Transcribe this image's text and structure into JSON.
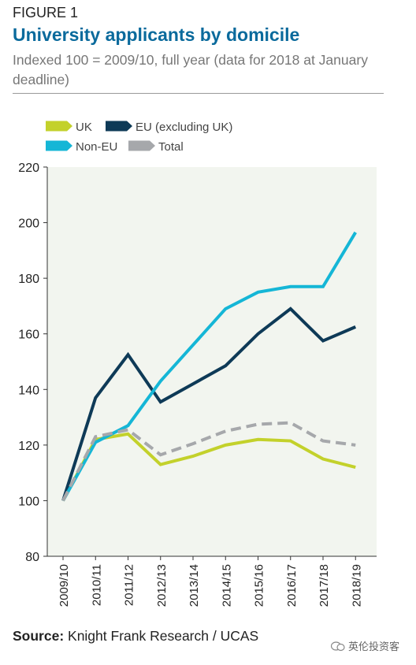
{
  "header": {
    "figure_label": "FIGURE 1",
    "title": "University applicants by domicile",
    "subtitle": "Indexed 100 = 2009/10, full year (data for 2018 at January deadline)"
  },
  "footer": {
    "source_prefix": "Source:",
    "source_text": " Knight Frank Research / UCAS",
    "watermark": "英伦投资客"
  },
  "colors": {
    "plot_background": "#f2f5ef",
    "uk": "#c3d12b",
    "eu": "#0e3a57",
    "non_eu": "#15b6d6",
    "total": "#a6a8ab"
  },
  "chart_data": {
    "type": "line",
    "title": "",
    "xlabel": "",
    "ylabel": "",
    "ylim": [
      80,
      220
    ],
    "yticks": [
      80,
      100,
      120,
      140,
      160,
      180,
      200,
      220
    ],
    "grid": false,
    "legend_position": "top-left",
    "x": [
      "2009/10",
      "2010/11",
      "2011/12",
      "2012/13",
      "2013/14",
      "2014/15",
      "2015/16",
      "2016/17",
      "2017/18",
      "2018/19"
    ],
    "series": [
      {
        "name": "UK",
        "color": "#c3d12b",
        "dashed": false,
        "values": [
          100,
          122,
          124,
          113,
          116,
          120,
          122,
          121.5,
          115,
          112
        ]
      },
      {
        "name": "EU (excluding UK)",
        "color": "#0e3a57",
        "dashed": false,
        "values": [
          100,
          137,
          152.5,
          135.5,
          142,
          148.5,
          160,
          169,
          157.5,
          162.5
        ]
      },
      {
        "name": "Non-EU",
        "color": "#15b6d6",
        "dashed": false,
        "values": [
          100,
          121,
          127,
          143,
          156,
          169,
          175,
          177,
          177,
          196.5
        ]
      },
      {
        "name": "Total",
        "color": "#a6a8ab",
        "dashed": true,
        "values": [
          100,
          123,
          125.5,
          116.5,
          120.5,
          125,
          127.5,
          128,
          121.5,
          120
        ]
      }
    ]
  }
}
